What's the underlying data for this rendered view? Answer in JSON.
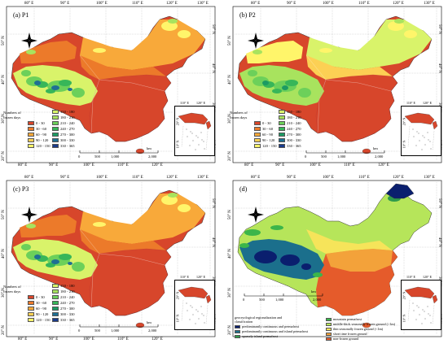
{
  "panels": [
    {
      "id": "a",
      "title": "(a) P1"
    },
    {
      "id": "b",
      "title": "(b) P2"
    },
    {
      "id": "c",
      "title": "(c) P3"
    },
    {
      "id": "d",
      "title": "(d)"
    }
  ],
  "axis": {
    "top": [
      "80° E",
      "90° E",
      "100° E",
      "110° E",
      "120° E",
      "130° E"
    ],
    "bottom": [
      "80° E",
      "90° E",
      "100° E",
      "110° E",
      "120° E"
    ],
    "left": [
      "40° N",
      "30° N",
      "20° N"
    ],
    "left_top": "50° N",
    "right": [
      "50° N",
      "40° N",
      "30° N",
      "20° N"
    ]
  },
  "inset": {
    "lon1": "110° E",
    "lon2": "120° E",
    "lat1": "20° N",
    "lat2": "10° N"
  },
  "scale": {
    "unit": "km",
    "ticks": [
      "0",
      "500",
      "1,000",
      "2,000"
    ]
  },
  "legend_frozen": {
    "title": "Numbers of frozen days",
    "items": [
      {
        "label": "0 - 30",
        "color": "#d7462b"
      },
      {
        "label": "30 - 60",
        "color": "#ec7a2a"
      },
      {
        "label": "60 - 90",
        "color": "#f8a93a"
      },
      {
        "label": "90 - 120",
        "color": "#fcd054"
      },
      {
        "label": "120 - 150",
        "color": "#fff56a"
      },
      {
        "label": "150 - 180",
        "color": "#d9f36a"
      },
      {
        "label": "180 - 210",
        "color": "#a8e35e"
      },
      {
        "label": "210 - 240",
        "color": "#6cd05a"
      },
      {
        "label": "240 - 270",
        "color": "#37b659"
      },
      {
        "label": "270 - 300",
        "color": "#1c9a63"
      },
      {
        "label": "300 - 330",
        "color": "#1f6f93"
      },
      {
        "label": "330 - 365",
        "color": "#1a3b8a"
      }
    ]
  },
  "legend_geo": {
    "title": "geocryological regionalization and classification",
    "items": [
      {
        "label": "predominantly continuous and permafrost",
        "color": "#0a1f6e"
      },
      {
        "label": "predominantly continuous and island permafrost",
        "color": "#1b6f8c"
      },
      {
        "label": "sparsely island permafrost",
        "color": "#2e9a4b"
      },
      {
        "label": "mountain permafrost",
        "color": "#3bb54a"
      },
      {
        "label": "middle-thick seasonally frozen ground (>1m)",
        "color": "#b6e55a"
      },
      {
        "label": "thin seasonally frozen ground (<1m)",
        "color": "#f6e45a"
      },
      {
        "label": "short time frozen ground",
        "color": "#f3a23a"
      },
      {
        "label": "non-frozen ground",
        "color": "#e55b2b"
      }
    ]
  }
}
